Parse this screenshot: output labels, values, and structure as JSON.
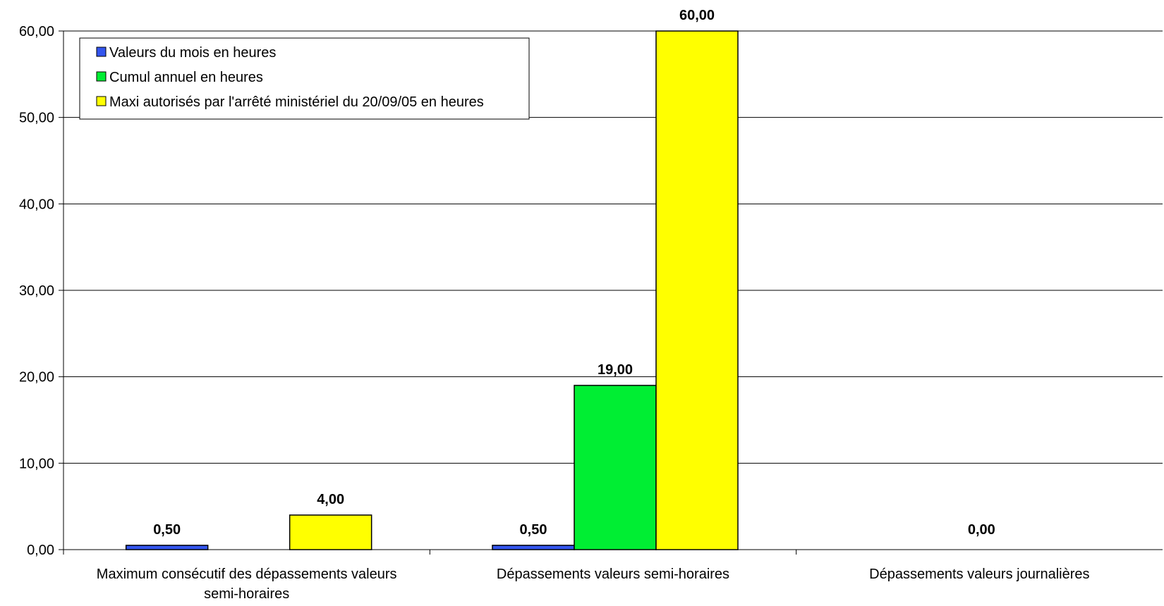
{
  "chart_data": {
    "type": "bar",
    "title": "",
    "xlabel": "",
    "ylabel": "",
    "ylim": [
      0,
      60
    ],
    "ytick_step": 10,
    "ytick_labels": [
      "0,00",
      "10,00",
      "20,00",
      "30,00",
      "40,00",
      "50,00",
      "60,00"
    ],
    "grid": true,
    "legend_position": "top-left",
    "categories": [
      [
        "Maximum consécutif des dépassements valeurs",
        "semi-horaires"
      ],
      [
        "Dépassements valeurs semi-horaires"
      ],
      [
        "Dépassements valeurs journalières"
      ]
    ],
    "series": [
      {
        "name": "Valeurs du mois en heures",
        "color": "#3355ee",
        "values": [
          0.5,
          0.5,
          null
        ],
        "labels": [
          "0,50",
          "0,50",
          ""
        ]
      },
      {
        "name": "Cumul annuel en heures",
        "color": "#00ee33",
        "values": [
          null,
          19,
          null
        ],
        "labels": [
          "",
          "19,00",
          "0,00"
        ]
      },
      {
        "name": "Maxi autorisés par l'arrêté ministériel du 20/09/05 en heures",
        "color": "#ffff00",
        "values": [
          4,
          60,
          null
        ],
        "labels": [
          "4,00",
          "60,00",
          ""
        ]
      }
    ]
  }
}
